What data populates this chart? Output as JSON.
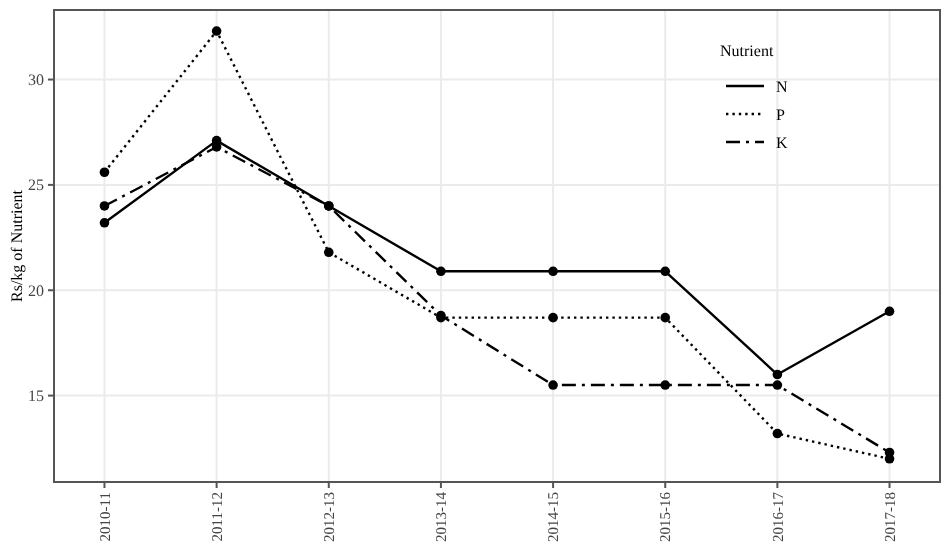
{
  "chart_data": {
    "type": "line",
    "ylabel": "Rs/kg of Nutrient",
    "legend_title": "Nutrient",
    "categories": [
      "2010-11",
      "2011-12",
      "2012-13",
      "2013-14",
      "2014-15",
      "2015-16",
      "2016-17",
      "2017-18"
    ],
    "series": [
      {
        "name": "N",
        "color": "#000000",
        "line_style": "solid",
        "values": [
          23.2,
          27.1,
          24.0,
          20.9,
          20.9,
          20.9,
          16.0,
          19.0
        ]
      },
      {
        "name": "P",
        "color": "#000000",
        "line_style": "dotted",
        "values": [
          25.6,
          32.3,
          21.8,
          18.7,
          18.7,
          18.7,
          13.2,
          12.0
        ]
      },
      {
        "name": "K",
        "color": "#000000",
        "line_style": "dashdot",
        "values": [
          24.0,
          26.8,
          24.0,
          18.8,
          15.5,
          15.5,
          15.5,
          12.3
        ]
      }
    ],
    "ylim": [
      10.9,
      33.3
    ],
    "yticks": [
      15,
      20,
      25,
      30
    ],
    "grid": true,
    "legend": "top right",
    "marker": "circle"
  }
}
